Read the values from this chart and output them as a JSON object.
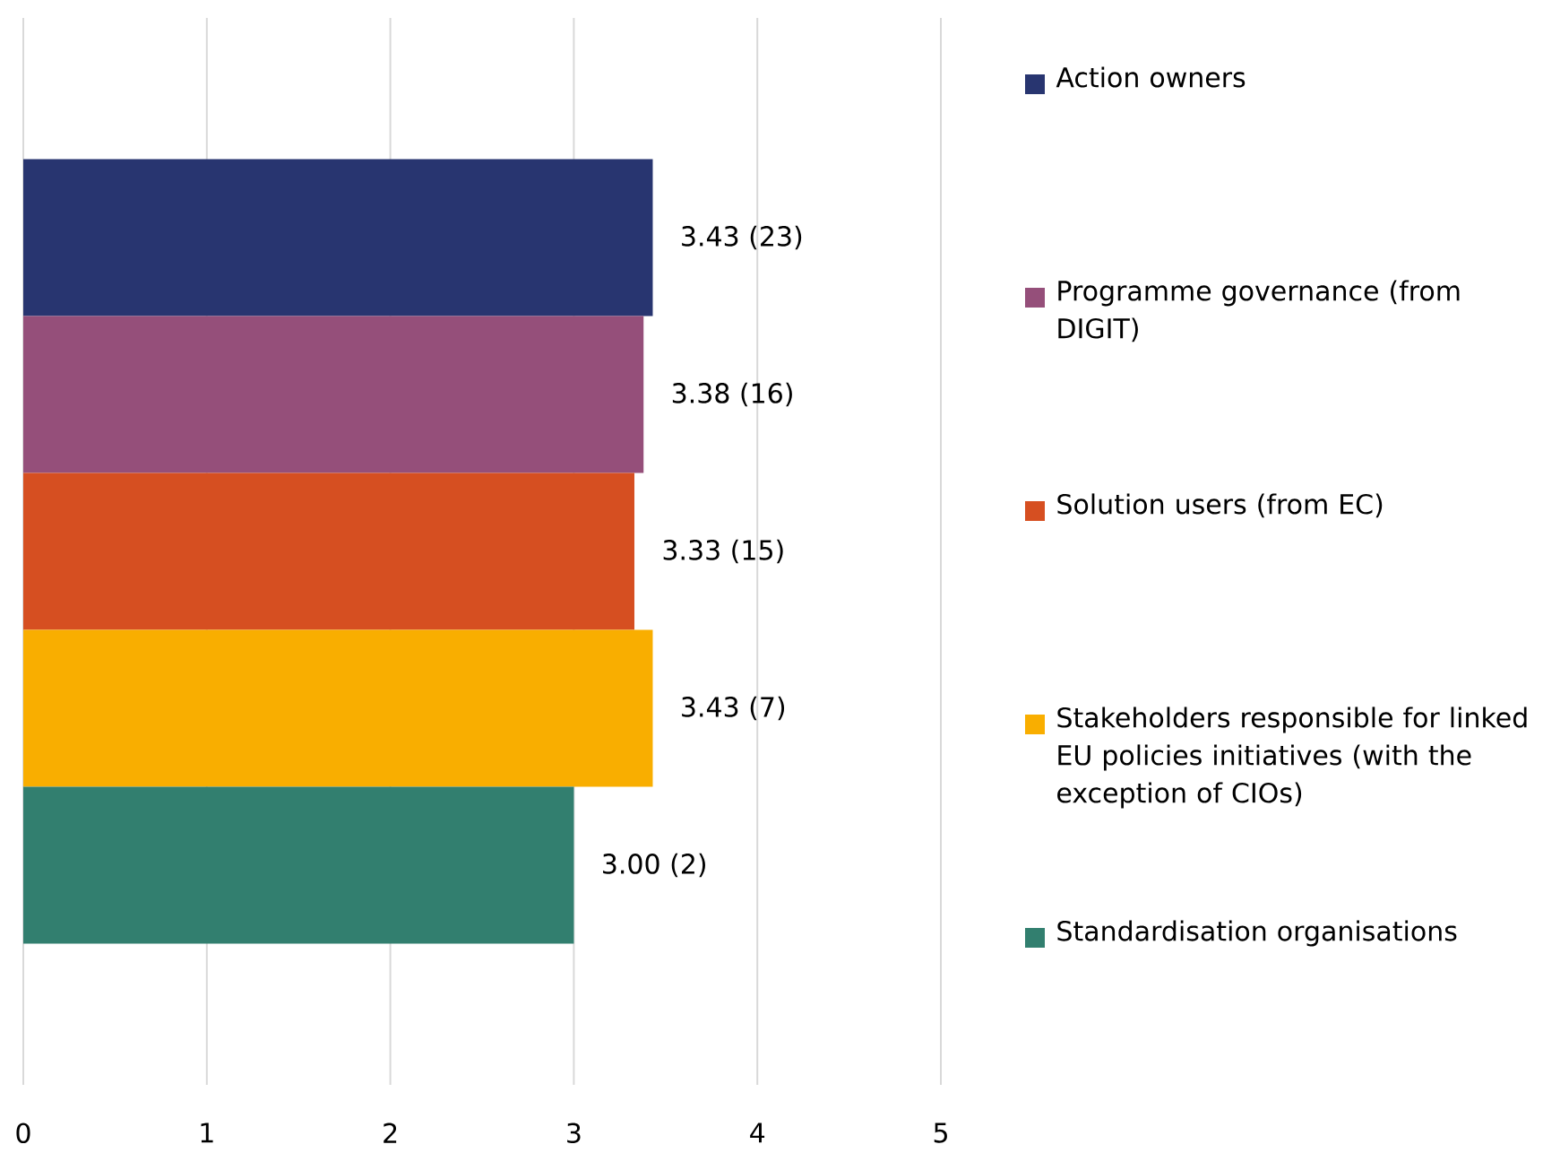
{
  "chart_data": {
    "type": "bar",
    "orientation": "horizontal",
    "categories": [
      null
    ],
    "series": [
      {
        "name": "Action owners",
        "color": "#283570",
        "values": [
          3.43
        ],
        "value_labels": [
          "3.43 (23)"
        ]
      },
      {
        "name": "Programme governance (from DIGIT)",
        "color": "#954f7a",
        "values": [
          3.38
        ],
        "value_labels": [
          "3.38 (16)"
        ]
      },
      {
        "name": "Solution users (from EC)",
        "color": "#d64f21",
        "values": [
          3.33
        ],
        "value_labels": [
          "3.33 (15)"
        ]
      },
      {
        "name": "Stakeholders responsible for linked EU policies initiatives (with the exception of CIOs)",
        "color": "#f9ae00",
        "values": [
          3.43
        ],
        "value_labels": [
          "3.43 (7)"
        ]
      },
      {
        "name": "Standardisation organisations",
        "color": "#327f6f",
        "values": [
          3.0
        ],
        "value_labels": [
          "3.00 (2)"
        ]
      }
    ],
    "xlim": [
      0,
      5
    ],
    "xticks": [
      0,
      1,
      2,
      3,
      4,
      5
    ],
    "grid": "x",
    "legend": "right"
  }
}
